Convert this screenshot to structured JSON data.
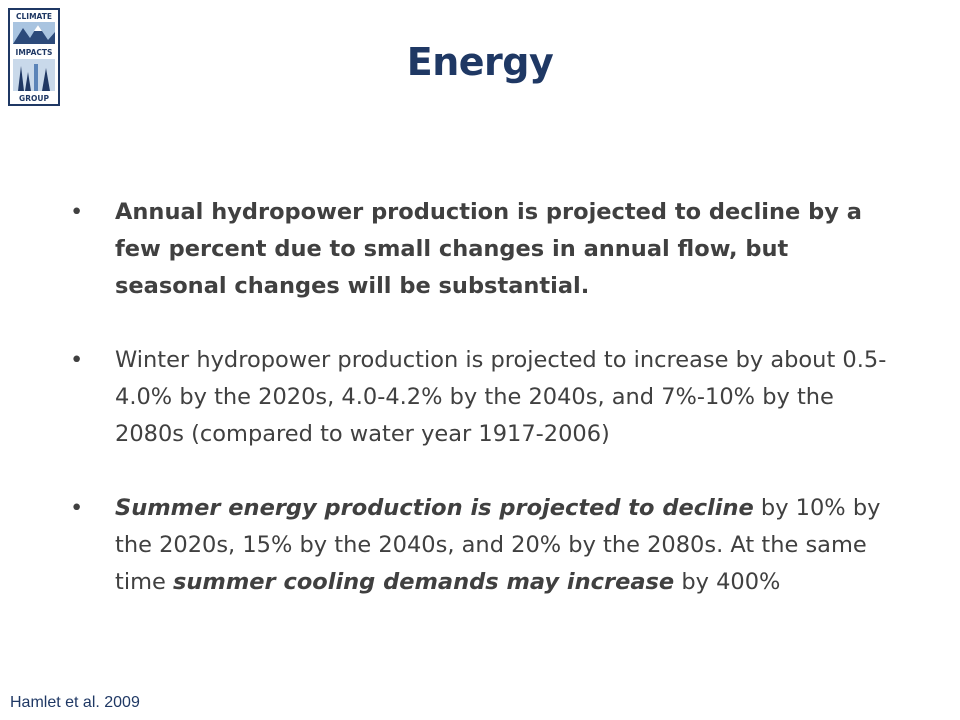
{
  "logo": {
    "line1": "CLIMATE",
    "line2": "IMPACTS",
    "line3": "GROUP",
    "colors": {
      "border": "#1f3864",
      "sky": "#a9c4e0",
      "mountain": "#2c4a7a",
      "tree": "#1f3864"
    }
  },
  "title": "Energy",
  "bullets": [
    {
      "symbol": "•",
      "text": "Annual hydropower production is projected to decline by a few percent due to small changes in annual flow, but seasonal changes will be substantial."
    },
    {
      "symbol": "•",
      "text": "Winter hydropower production is projected to increase by about 0.5-4.0% by the 2020s, 4.0-4.2% by the 2040s, and 7%-10% by the 2080s (compared to water year 1917-2006)"
    },
    {
      "symbol": "•",
      "part1": "Summer energy production is projected to decline",
      "part2": " by 10% by the 2020s, 15% by the 2040s, and 20% by the 2080s.  At the same time ",
      "part3": "summer cooling demands may increase",
      "part4": " by 400%"
    }
  ],
  "citation": "Hamlet et al. 2009",
  "colors": {
    "title": "#1f3864",
    "body": "#404040"
  }
}
